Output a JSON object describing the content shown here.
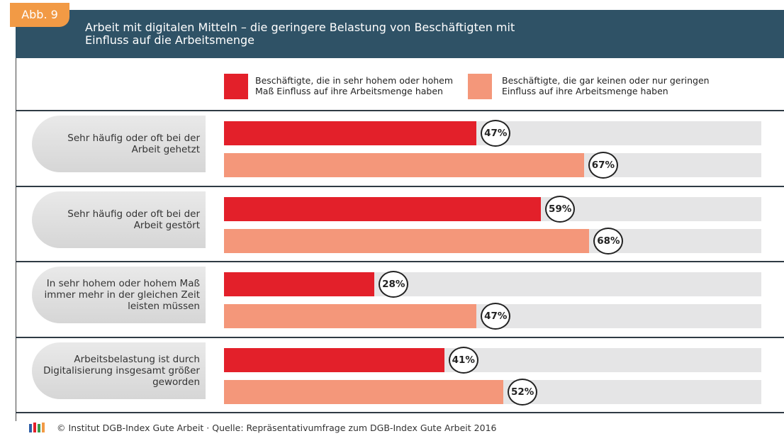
{
  "badge": "Abb. 9",
  "footer": "© Institut DGB-Index Gute Arbeit · Quelle: Repräsentativumfrage zum DGB-Index Gute Arbeit 2016",
  "chart_data": {
    "type": "bar",
    "orientation": "horizontal",
    "title": "Arbeit mit digitalen Mitteln – die geringere Belastung von Beschäftigten mit Einfluss auf die Arbeitsmenge",
    "categories": [
      "Sehr häufig oder oft bei der Arbeit gehetzt",
      "Sehr häufig oder oft bei der Arbeit gestört",
      "In sehr hohem oder hohem Maß immer mehr in der gleichen Zeit leisten müssen",
      "Arbeitsbelastung ist durch Digitalisierung insgesamt größer geworden"
    ],
    "series": [
      {
        "name": "Beschäftigte, die in sehr hohem oder hohem Maß Einfluss auf ihre Arbeitsmenge haben",
        "color": "#e3202a",
        "values": [
          47,
          59,
          28,
          41
        ],
        "value_labels": [
          "47%",
          "59%",
          "28%",
          "41%"
        ]
      },
      {
        "name": "Beschäftigte, die gar keinen oder nur geringen Einfluss auf ihre Arbeitsmenge haben",
        "color": "#f4977a",
        "values": [
          67,
          68,
          47,
          52
        ],
        "value_labels": [
          "67%",
          "68%",
          "47%",
          "52%"
        ]
      }
    ],
    "xlim": [
      0,
      100
    ]
  }
}
